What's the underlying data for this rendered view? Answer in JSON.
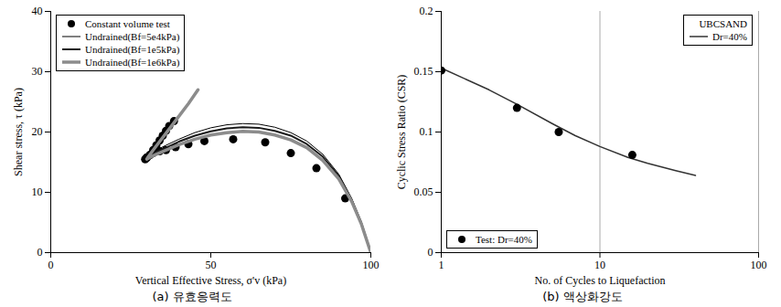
{
  "chart_data": [
    {
      "type": "line",
      "caption": "(a) 유효응력도",
      "x_label": "Vertical Effective Stress, σ'v (kPa)",
      "y_label": "Shear stress, τ (kPa)",
      "xlim": [
        0,
        100
      ],
      "xticks": [
        0,
        50,
        100
      ],
      "ylim": [
        0,
        40
      ],
      "yticks": [
        0,
        10,
        20,
        30,
        40
      ],
      "grid": false,
      "legend": "top-left",
      "series": [
        {
          "name": "Constant volume test",
          "type": "scatter",
          "marker": "circle",
          "color": "#000000",
          "x": [
            92,
            83,
            75,
            67,
            57,
            48,
            43,
            39,
            36,
            34,
            32,
            31,
            30,
            29.5,
            30,
            31,
            32,
            33,
            34,
            35,
            36,
            37,
            38.5
          ],
          "values": [
            9,
            14,
            16.5,
            18.3,
            18.8,
            18.5,
            18,
            17.5,
            17,
            16.8,
            16.5,
            16.2,
            15.8,
            15.5,
            15.7,
            16.2,
            17,
            17.8,
            18.6,
            19.4,
            20.2,
            21,
            21.8
          ]
        },
        {
          "name": "Undrained(Bf=5e4kPa)",
          "type": "line",
          "line_style": "solid",
          "color": "#000000",
          "x": [
            100,
            97,
            94,
            90,
            85,
            80,
            75,
            70,
            65,
            60,
            55,
            50,
            45,
            40,
            36,
            33,
            31,
            30,
            30.5,
            32,
            34,
            36,
            38
          ],
          "values": [
            0,
            5,
            9,
            13,
            16.3,
            18.5,
            19.9,
            20.8,
            21.3,
            21.4,
            21.2,
            20.7,
            19.9,
            18.8,
            17.8,
            17,
            16.4,
            16,
            16.3,
            17.3,
            18.6,
            19.9,
            21.3
          ]
        },
        {
          "name": "Undrained(Bf=1e5kPa)",
          "type": "line",
          "line_style": "solid",
          "color": "#1a1a1a",
          "x": [
            100,
            97,
            94,
            90,
            85,
            80,
            75,
            70,
            65,
            60,
            55,
            50,
            45,
            40,
            36,
            33,
            31,
            30,
            30.5,
            32,
            34,
            36,
            38
          ],
          "values": [
            0,
            5,
            8.8,
            12.7,
            15.9,
            18,
            19.4,
            20.2,
            20.7,
            20.8,
            20.6,
            20.1,
            19.4,
            18.4,
            17.4,
            16.7,
            16.1,
            15.8,
            16.1,
            17.1,
            18.4,
            19.7,
            21.1
          ]
        },
        {
          "name": "Undrained(Bf=1e6kPa)",
          "type": "line",
          "line_style": "solid",
          "color": "#8c8c8c",
          "x": [
            100,
            97,
            94,
            90,
            85,
            80,
            75,
            70,
            65,
            60,
            55,
            50,
            45,
            40,
            36,
            33,
            31,
            30,
            30.5,
            32,
            34,
            36,
            38,
            40,
            43,
            46
          ],
          "values": [
            0,
            4.8,
            8.5,
            12.2,
            15.3,
            17.4,
            18.7,
            19.5,
            20,
            20.1,
            19.9,
            19.5,
            18.8,
            17.9,
            17,
            16.3,
            15.8,
            15.5,
            15.9,
            17,
            18.4,
            19.8,
            21.2,
            22.6,
            24.7,
            27
          ]
        }
      ]
    },
    {
      "type": "line",
      "caption": "(b) 액상화강도",
      "x_label": "No. of Cycles to Liquefaction",
      "y_label": "Cyclic Stress Ratio (CSR)",
      "log": "x",
      "xlim": [
        1,
        100
      ],
      "xticks": [
        1,
        10,
        100
      ],
      "ylim": [
        0,
        0.2
      ],
      "yticks": [
        0,
        0.05,
        0.1,
        0.15,
        0.2
      ],
      "grid": "x",
      "legend": "top-right",
      "legend_title": "UBCSAND",
      "series": [
        {
          "name": "Dr=40%",
          "type": "line",
          "line_style": "solid",
          "color": "#333333",
          "x": [
            1,
            2,
            3,
            5,
            7,
            10,
            15,
            20,
            30,
            40
          ],
          "values": [
            0.153,
            0.135,
            0.123,
            0.107,
            0.097,
            0.088,
            0.079,
            0.074,
            0.068,
            0.064
          ]
        },
        {
          "name": "Test: Dr=40%",
          "type": "scatter",
          "marker": "circle",
          "color": "#000000",
          "x": [
            1,
            3,
            5.5,
            16
          ],
          "values": [
            0.151,
            0.12,
            0.1,
            0.081
          ]
        }
      ]
    }
  ]
}
